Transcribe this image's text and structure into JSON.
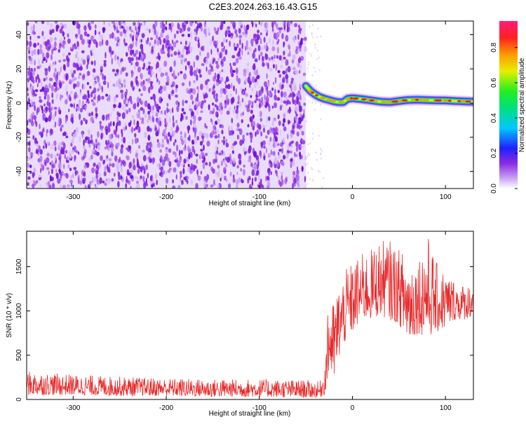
{
  "title": "C2E3.2024.263.16.43.G15",
  "colors": {
    "background_noise": "#8a2be2",
    "signal_core": "#ff3a3a",
    "snr_line": "#e8292a",
    "axis": "#000000"
  },
  "colorbar": {
    "label": "Normalized spectral amplitude",
    "range": [
      0,
      0.95
    ],
    "ticks": [
      "0.0",
      "0.2",
      "0.4",
      "0.6",
      "0.8"
    ],
    "tick_values": [
      0,
      0.2,
      0.4,
      0.6,
      0.8
    ],
    "colormap": "rainbow"
  },
  "chart_data": [
    {
      "type": "heatmap",
      "xlabel": "Height of straight line (km)",
      "ylabel": "Frequency (Hz)",
      "xlim": [
        -350,
        130
      ],
      "ylim": [
        -50,
        48
      ],
      "x_ticks": [
        -300,
        -200,
        -100,
        0,
        100
      ],
      "x_tick_labels": [
        "-300",
        "-200",
        "-100",
        "0",
        "100"
      ],
      "y_ticks": [
        -40,
        -20,
        0,
        20,
        40
      ],
      "y_tick_labels": [
        "-40",
        "-20",
        "0",
        "20",
        "40"
      ],
      "noise_region_x": [
        -350,
        -50
      ],
      "signal_track": {
        "x": [
          -50,
          -45,
          -40,
          -35,
          -30,
          -25,
          -20,
          -15,
          -10,
          -5,
          0,
          10,
          20,
          30,
          40,
          50,
          60,
          70,
          80,
          90,
          100,
          110,
          120,
          130
        ],
        "frequency": [
          10,
          7,
          5,
          3.5,
          2.5,
          1.8,
          1.0,
          0.5,
          0.5,
          2.5,
          2.8,
          2.3,
          1.6,
          0.8,
          0.5,
          1.2,
          1.8,
          1.9,
          1.7,
          1.6,
          1.5,
          1.2,
          1.0,
          0.8
        ]
      }
    },
    {
      "type": "line",
      "xlabel": "Height of straight line (km)",
      "ylabel": "SNR (10 * v/v)",
      "xlim": [
        -350,
        130
      ],
      "ylim": [
        0,
        1900
      ],
      "x_ticks": [
        -300,
        -200,
        -100,
        0,
        100
      ],
      "x_tick_labels": [
        "-300",
        "-200",
        "-100",
        "0",
        "100"
      ],
      "y_ticks": [
        0,
        500,
        1000,
        1500
      ],
      "y_tick_labels": [
        "0",
        "500",
        "1000",
        "1500"
      ],
      "envelope": {
        "x": [
          -350,
          -300,
          -250,
          -200,
          -150,
          -100,
          -50,
          -35,
          -30,
          -25,
          -20,
          -15,
          -10,
          -5,
          0,
          10,
          20,
          30,
          40,
          50,
          60,
          70,
          80,
          90,
          100,
          110,
          120,
          130
        ],
        "low": [
          50,
          50,
          40,
          40,
          30,
          30,
          20,
          20,
          50,
          300,
          200,
          450,
          600,
          700,
          750,
          900,
          900,
          950,
          900,
          850,
          650,
          750,
          700,
          750,
          800,
          900,
          900,
          950
        ],
        "high": [
          320,
          280,
          260,
          240,
          230,
          230,
          220,
          200,
          350,
          1200,
          1100,
          1300,
          1400,
          1500,
          1550,
          1650,
          1700,
          1800,
          1800,
          1700,
          1650,
          1600,
          1900,
          1550,
          1450,
          1350,
          1300,
          1330
        ]
      }
    }
  ]
}
